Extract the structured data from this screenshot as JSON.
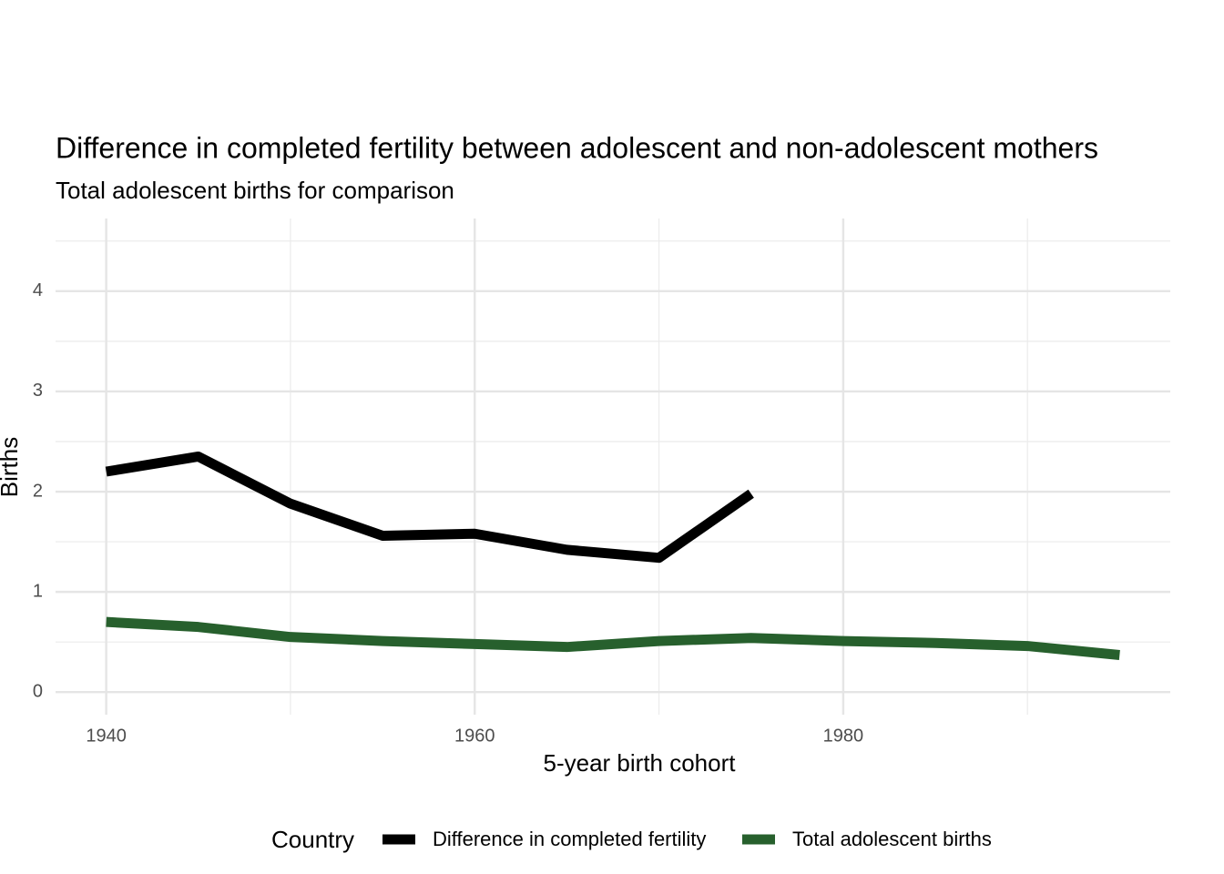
{
  "chart_data": {
    "type": "line",
    "title": "Difference in completed fertility between adolescent and non-adolescent mothers",
    "subtitle": "Total adolescent births for comparison",
    "x_label": "5-year birth cohort",
    "y_label": "Births",
    "legend_title": "Country",
    "legend_position": "bottom",
    "grid": true,
    "x": [
      1940,
      1945,
      1950,
      1955,
      1960,
      1965,
      1970,
      1975,
      1980,
      1985,
      1990,
      1995
    ],
    "series": [
      {
        "name": "Difference in completed fertility",
        "color": "#000000",
        "values": [
          2.2,
          2.35,
          1.88,
          1.56,
          1.58,
          1.42,
          1.34,
          1.98,
          null,
          null,
          null,
          null
        ]
      },
      {
        "name": "Total adolescent births",
        "color": "#27602d",
        "values": [
          0.7,
          0.65,
          0.55,
          0.51,
          0.48,
          0.45,
          0.51,
          0.54,
          0.51,
          0.49,
          0.46,
          0.37
        ]
      }
    ],
    "xlim": [
      1937.25,
      1997.75
    ],
    "xticks": [
      1940,
      1960,
      1980
    ],
    "xticks_minor": [
      1950,
      1970,
      1990
    ],
    "ylim": [
      -0.225,
      4.725
    ],
    "yticks": [
      0,
      1,
      2,
      3,
      4
    ],
    "yticks_minor": [
      0.5,
      1.5,
      2.5,
      3.5,
      4.5
    ]
  }
}
